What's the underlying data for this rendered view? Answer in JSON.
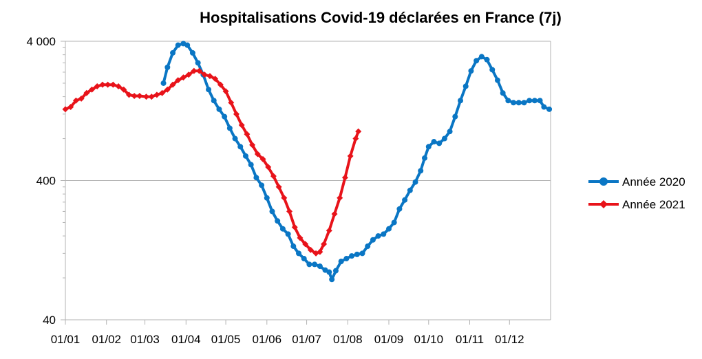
{
  "chart_data": {
    "type": "line",
    "title": "Hospitalisations Covid-19 déclarées en France (7j)",
    "xlabel": "",
    "ylabel": "",
    "y_scale": "log",
    "ylim": [
      40,
      4000
    ],
    "y_ticks": [
      {
        "value": 4000,
        "label": "4 000"
      },
      {
        "value": 400,
        "label": "400"
      },
      {
        "value": 40,
        "label": "40"
      }
    ],
    "xlim": [
      "01/01",
      "31/12"
    ],
    "x_ticks": [
      "01/01",
      "01/02",
      "01/03",
      "01/04",
      "01/05",
      "01/06",
      "01/07",
      "01/08",
      "01/09",
      "01/10",
      "01/11",
      "01/12"
    ],
    "grid": {
      "horizontal": true,
      "vertical": false
    },
    "legend_position": "right",
    "series": [
      {
        "name": "Année 2020",
        "color": "#0a76c4",
        "marker": "circle",
        "points": [
          [
            "15/03",
            2000
          ],
          [
            "18/03",
            2600
          ],
          [
            "22/03",
            3300
          ],
          [
            "26/03",
            3750
          ],
          [
            "30/03",
            3850
          ],
          [
            "02/04",
            3750
          ],
          [
            "06/04",
            3300
          ],
          [
            "10/04",
            2800
          ],
          [
            "14/04",
            2300
          ],
          [
            "18/04",
            1800
          ],
          [
            "22/04",
            1500
          ],
          [
            "26/04",
            1300
          ],
          [
            "30/04",
            1150
          ],
          [
            "04/05",
            950
          ],
          [
            "08/05",
            800
          ],
          [
            "12/05",
            700
          ],
          [
            "16/05",
            600
          ],
          [
            "20/05",
            520
          ],
          [
            "24/05",
            420
          ],
          [
            "28/05",
            370
          ],
          [
            "01/06",
            300
          ],
          [
            "05/06",
            240
          ],
          [
            "09/06",
            205
          ],
          [
            "13/06",
            180
          ],
          [
            "17/06",
            165
          ],
          [
            "21/06",
            135
          ],
          [
            "25/06",
            120
          ],
          [
            "29/06",
            110
          ],
          [
            "03/07",
            100
          ],
          [
            "07/07",
            100
          ],
          [
            "11/07",
            97
          ],
          [
            "15/07",
            91
          ],
          [
            "18/07",
            88
          ],
          [
            "20/07",
            78
          ],
          [
            "23/07",
            90
          ],
          [
            "27/07",
            105
          ],
          [
            "31/07",
            110
          ],
          [
            "04/08",
            115
          ],
          [
            "08/08",
            118
          ],
          [
            "12/08",
            120
          ],
          [
            "16/08",
            135
          ],
          [
            "20/08",
            150
          ],
          [
            "24/08",
            160
          ],
          [
            "28/08",
            165
          ],
          [
            "01/09",
            180
          ],
          [
            "05/09",
            200
          ],
          [
            "09/09",
            250
          ],
          [
            "13/09",
            290
          ],
          [
            "17/09",
            340
          ],
          [
            "21/09",
            390
          ],
          [
            "25/09",
            470
          ],
          [
            "28/09",
            580
          ],
          [
            "01/10",
            700
          ],
          [
            "05/10",
            760
          ],
          [
            "09/10",
            740
          ],
          [
            "13/10",
            800
          ],
          [
            "17/10",
            900
          ],
          [
            "21/10",
            1150
          ],
          [
            "25/10",
            1500
          ],
          [
            "29/10",
            1900
          ],
          [
            "02/11",
            2450
          ],
          [
            "06/11",
            2900
          ],
          [
            "10/11",
            3100
          ],
          [
            "14/11",
            2950
          ],
          [
            "18/11",
            2500
          ],
          [
            "22/11",
            2100
          ],
          [
            "26/11",
            1700
          ],
          [
            "30/11",
            1500
          ],
          [
            "04/12",
            1450
          ],
          [
            "08/12",
            1450
          ],
          [
            "12/12",
            1450
          ],
          [
            "16/12",
            1500
          ],
          [
            "20/12",
            1500
          ],
          [
            "24/12",
            1500
          ],
          [
            "27/12",
            1350
          ],
          [
            "31/12",
            1300
          ]
        ]
      },
      {
        "name": "Année 2021",
        "color": "#e8131a",
        "marker": "diamond",
        "points": [
          [
            "01/01",
            1300
          ],
          [
            "05/01",
            1350
          ],
          [
            "09/01",
            1500
          ],
          [
            "13/01",
            1550
          ],
          [
            "17/01",
            1700
          ],
          [
            "21/01",
            1800
          ],
          [
            "25/01",
            1900
          ],
          [
            "29/01",
            1950
          ],
          [
            "02/02",
            1950
          ],
          [
            "06/02",
            1950
          ],
          [
            "10/02",
            1900
          ],
          [
            "14/02",
            1800
          ],
          [
            "18/02",
            1650
          ],
          [
            "22/02",
            1620
          ],
          [
            "26/02",
            1620
          ],
          [
            "02/03",
            1600
          ],
          [
            "06/03",
            1600
          ],
          [
            "10/03",
            1650
          ],
          [
            "14/03",
            1700
          ],
          [
            "18/03",
            1800
          ],
          [
            "22/03",
            1950
          ],
          [
            "26/03",
            2100
          ],
          [
            "30/03",
            2200
          ],
          [
            "03/04",
            2300
          ],
          [
            "07/04",
            2450
          ],
          [
            "11/04",
            2450
          ],
          [
            "15/04",
            2300
          ],
          [
            "19/04",
            2250
          ],
          [
            "23/04",
            2150
          ],
          [
            "27/04",
            1950
          ],
          [
            "01/05",
            1750
          ],
          [
            "05/05",
            1450
          ],
          [
            "09/05",
            1200
          ],
          [
            "13/05",
            1000
          ],
          [
            "17/05",
            860
          ],
          [
            "21/05",
            720
          ],
          [
            "25/05",
            620
          ],
          [
            "29/05",
            570
          ],
          [
            "02/06",
            500
          ],
          [
            "06/06",
            430
          ],
          [
            "10/06",
            360
          ],
          [
            "14/06",
            300
          ],
          [
            "18/06",
            240
          ],
          [
            "22/06",
            185
          ],
          [
            "26/06",
            155
          ],
          [
            "30/06",
            140
          ],
          [
            "04/07",
            127
          ],
          [
            "08/07",
            120
          ],
          [
            "11/07",
            123
          ],
          [
            "14/07",
            140
          ],
          [
            "18/07",
            175
          ],
          [
            "22/07",
            230
          ],
          [
            "26/07",
            300
          ],
          [
            "30/07",
            420
          ],
          [
            "03/08",
            600
          ],
          [
            "07/08",
            800
          ],
          [
            "09/08",
            900
          ]
        ]
      }
    ]
  }
}
